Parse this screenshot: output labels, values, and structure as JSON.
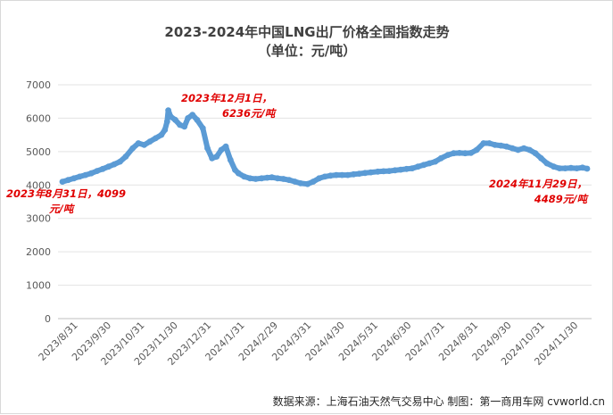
{
  "chart_data": {
    "type": "line",
    "title": "2023-2024年中国LNG出厂价格全国指数走势",
    "subtitle": "（单位：元/吨）",
    "xlabel": "",
    "ylabel": "",
    "ylim": [
      0,
      7000
    ],
    "yticks": [
      0,
      1000,
      2000,
      3000,
      4000,
      5000,
      6000,
      7000
    ],
    "xtick_labels": [
      "2023/8/31",
      "2023/9/30",
      "2023/10/31",
      "2023/11/30",
      "2023/12/31",
      "2024/1/31",
      "2024/2/29",
      "2024/3/31",
      "2024/4/30",
      "2024/5/31",
      "2024/6/30",
      "2024/7/31",
      "2024/8/31",
      "2024/9/30",
      "2024/10/31",
      "2024/11/30"
    ],
    "grid": "horizontal",
    "legend": "none",
    "color": "#5b9bd5",
    "series": [
      {
        "x": [
          "2023-08-31",
          "2023-09-05",
          "2023-09-10",
          "2023-09-15",
          "2023-09-20",
          "2023-09-25",
          "2023-09-30",
          "2023-10-05",
          "2023-10-10",
          "2023-10-15",
          "2023-10-20",
          "2023-10-25",
          "2023-10-31",
          "2023-11-05",
          "2023-11-10",
          "2023-11-15",
          "2023-11-20",
          "2023-11-25",
          "2023-11-28",
          "2023-11-30",
          "2023-12-01",
          "2023-12-03",
          "2023-12-07",
          "2023-12-11",
          "2023-12-15",
          "2023-12-18",
          "2023-12-22",
          "2023-12-26",
          "2023-12-31",
          "2024-01-04",
          "2024-01-08",
          "2024-01-12",
          "2024-01-16",
          "2024-01-20",
          "2024-01-24",
          "2024-01-28",
          "2024-01-31",
          "2024-02-05",
          "2024-02-10",
          "2024-02-15",
          "2024-02-20",
          "2024-02-25",
          "2024-02-29",
          "2024-03-05",
          "2024-03-10",
          "2024-03-15",
          "2024-03-20",
          "2024-03-25",
          "2024-03-31",
          "2024-04-05",
          "2024-04-10",
          "2024-04-15",
          "2024-04-20",
          "2024-04-25",
          "2024-04-30",
          "2024-05-05",
          "2024-05-10",
          "2024-05-15",
          "2024-05-20",
          "2024-05-25",
          "2024-05-31",
          "2024-06-05",
          "2024-06-10",
          "2024-06-15",
          "2024-06-20",
          "2024-06-25",
          "2024-06-30",
          "2024-07-05",
          "2024-07-10",
          "2024-07-15",
          "2024-07-20",
          "2024-07-25",
          "2024-07-31",
          "2024-08-05",
          "2024-08-10",
          "2024-08-15",
          "2024-08-20",
          "2024-08-25",
          "2024-08-31",
          "2024-09-05",
          "2024-09-10",
          "2024-09-15",
          "2024-09-20",
          "2024-09-25",
          "2024-09-30",
          "2024-10-05",
          "2024-10-10",
          "2024-10-15",
          "2024-10-20",
          "2024-10-25",
          "2024-10-31",
          "2024-11-05",
          "2024-11-10",
          "2024-11-15",
          "2024-11-20",
          "2024-11-25",
          "2024-11-29"
        ],
        "values": [
          4099,
          4150,
          4200,
          4250,
          4300,
          4350,
          4420,
          4480,
          4550,
          4620,
          4700,
          4850,
          5100,
          5250,
          5200,
          5300,
          5400,
          5500,
          5650,
          5900,
          6236,
          6050,
          5950,
          5800,
          5750,
          6000,
          6100,
          5950,
          5700,
          5100,
          4800,
          4850,
          5050,
          5150,
          4750,
          4450,
          4350,
          4250,
          4200,
          4180,
          4200,
          4220,
          4230,
          4200,
          4180,
          4150,
          4100,
          4050,
          4030,
          4100,
          4200,
          4250,
          4280,
          4300,
          4300,
          4300,
          4320,
          4340,
          4360,
          4380,
          4400,
          4410,
          4420,
          4440,
          4460,
          4480,
          4500,
          4550,
          4600,
          4650,
          4700,
          4800,
          4900,
          4950,
          4960,
          4950,
          4960,
          5050,
          5250,
          5250,
          5200,
          5180,
          5150,
          5100,
          5050,
          5100,
          5050,
          4950,
          4800,
          4650,
          4550,
          4500,
          4500,
          4510,
          4500,
          4520,
          4489
        ]
      }
    ],
    "annotations": [
      {
        "lines": [
          "2023年8月31日，4099",
          "元/吨"
        ],
        "x": "2023-08-31",
        "value": 4099
      },
      {
        "lines": [
          "2023年12月1日，",
          "6236元/吨"
        ],
        "x": "2023-12-01",
        "value": 6236
      },
      {
        "lines": [
          "2024年11月29日，",
          "4489元/吨"
        ],
        "x": "2024-11-29",
        "value": 4489
      }
    ]
  },
  "footer": {
    "source": "数据来源：上海石油天然气交易中心 制图：第一商用车网 cvworld.cn"
  }
}
